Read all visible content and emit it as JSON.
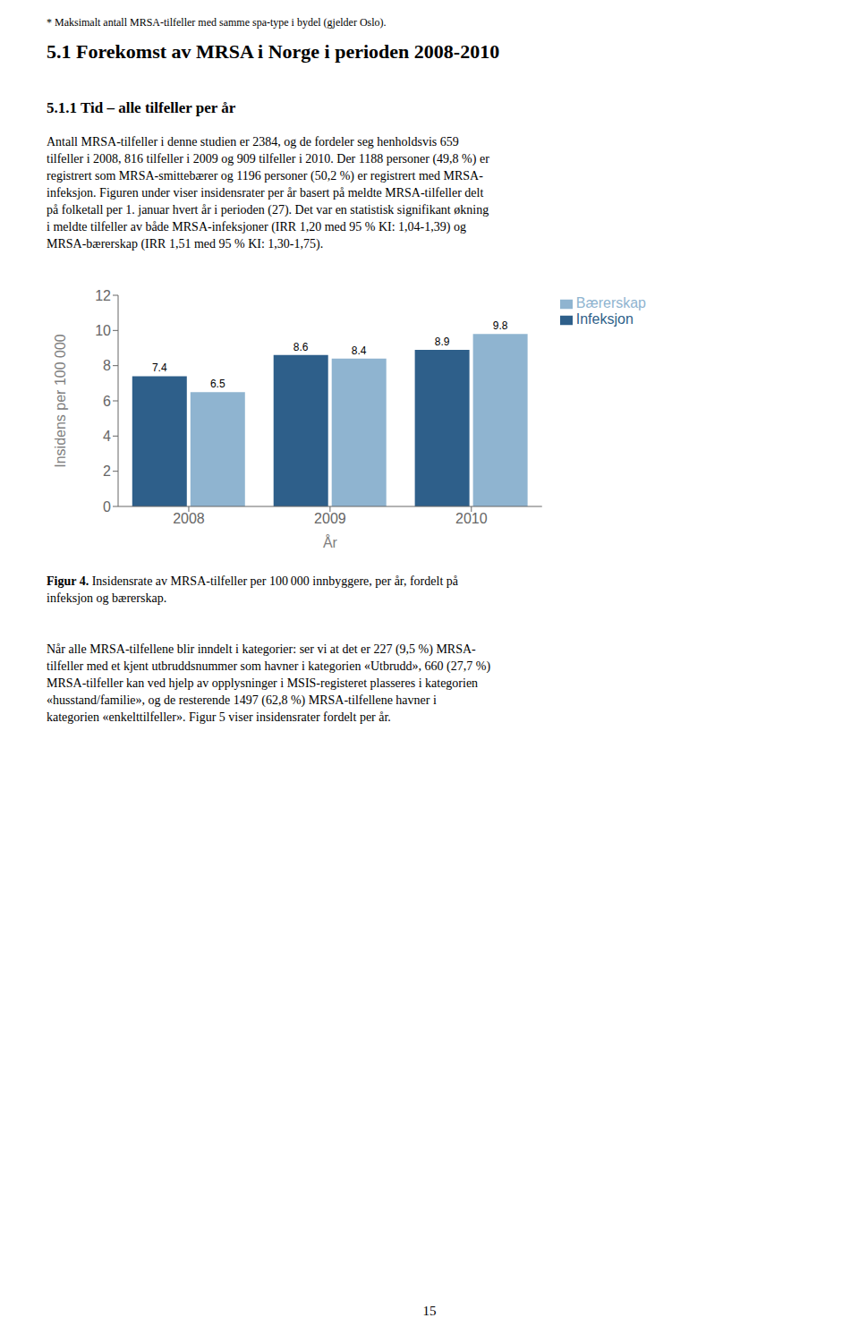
{
  "chart_data": {
    "type": "bar",
    "title": "5.1 Forekomst av MRSA i Norge i perioden 2008-2010",
    "subtitle": "5.1.1 Tid – alle tilfeller per år",
    "categories": [
      "2008",
      "2009",
      "2010"
    ],
    "series": [
      {
        "name": "Infeksjon",
        "color": "#2E5F8A",
        "values": [
          7.4,
          8.6,
          8.9
        ]
      },
      {
        "name": "Bærerskap",
        "color": "#8FB4D0",
        "values": [
          6.5,
          8.4,
          9.8
        ]
      }
    ],
    "xlabel": "År",
    "ylabel": "Insidens per 100 000",
    "ylim": [
      0,
      12
    ],
    "yticks": [
      0,
      2,
      4,
      6,
      8,
      10,
      12
    ],
    "grid": false,
    "legend": "right",
    "data_labels": true,
    "annotations": [
      "* Maksimalt antall MRSA-tilfeller med samme spa-type i bydel (gjelder Oslo).",
      "Antall MRSA-tilfeller i denne studien er 2384, og de fordeler seg henholdsvis 659",
      "tilfeller i 2008, 816 tilfeller i 2009 og 909 tilfeller i 2010. Der 1188 personer (49,8 %) er",
      "registrert som MRSA-smittebærer og 1196 personer (50,2 %) er registrert med MRSA-",
      "infeksjon. Figuren under viser insidensrater per år basert på meldte MRSA-tilfeller delt",
      "på folketall per 1. januar hvert år i perioden (27). Det var en statistisk signifikant økning",
      "i meldte tilfeller av både MRSA-infeksjoner (IRR 1,20 med 95 % KI: 1,04-1,39) og",
      "MRSA-bærerskap (IRR 1,51 med 95 % KI: 1,30-1,75).",
      "Figur 4.",
      "Insidensrate av MRSA-tilfeller per 100 000 innbyggere, per år, fordelt på",
      "infeksjon og bærerskap.",
      "Når alle MRSA-tilfellene blir inndelt i kategorier: ser vi at det er 227 (9,5 %) MRSA-",
      "tilfeller med et kjent utbruddsnummer som havner i kategorien «Utbrudd», 660 (27,7 %)",
      "MRSA-tilfeller kan ved hjelp av opplysninger i MSIS-registeret plasseres i kategorien",
      "«husstand/familie», og de resterende 1497 (62,8 %) MRSA-tilfellene havner i",
      "kategorien «enkelttilfeller». Figur 5 viser insidensrater fordelt per år.",
      "15"
    ]
  }
}
